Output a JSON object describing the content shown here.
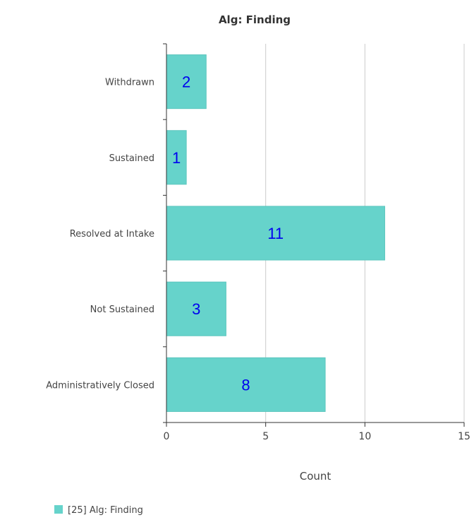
{
  "chart_data": {
    "type": "bar",
    "orientation": "horizontal",
    "title": "Alg: Finding",
    "categories": [
      "Withdrawn",
      "Sustained",
      "Resolved at Intake",
      "Not Sustained",
      "Administratively Closed"
    ],
    "series": [
      {
        "name": "[25] Alg: Finding",
        "values": [
          2,
          1,
          11,
          3,
          8
        ]
      }
    ],
    "xlabel": "Count",
    "ylabel": "",
    "xlim": [
      0,
      15
    ],
    "xticks": [
      0,
      5,
      10,
      15
    ],
    "grid": true,
    "data_labels": true,
    "legend_position": "bottom-left",
    "colors": {
      "bar": "#66d3cb",
      "bar_edge": "#5cc6be",
      "data_label": "#0000ee",
      "grid": "#cccccc",
      "axis": "#333333"
    }
  }
}
